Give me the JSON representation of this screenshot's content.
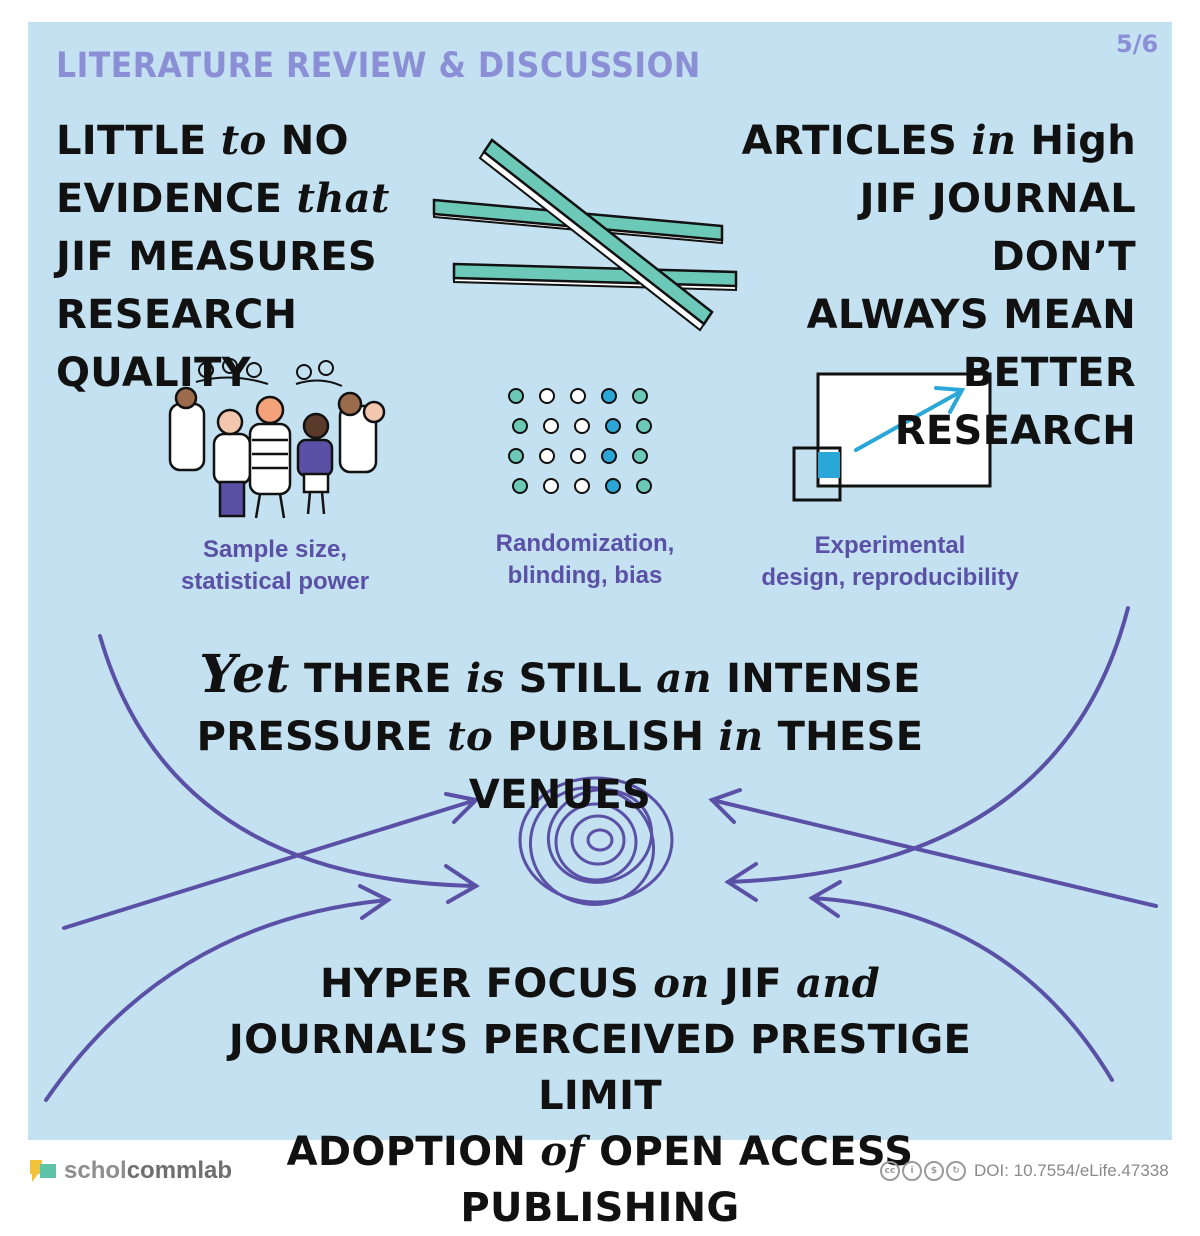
{
  "header": {
    "section_title": "LITERATURE REVIEW & DISCUSSION",
    "page_number": "5/6"
  },
  "left_claim": {
    "line1a": "LITTLE",
    "line1b": "to",
    "line1c": "NO",
    "line2a": "EVIDENCE",
    "line2b": "that",
    "line3": "JIF MEASURES",
    "line4": "RESEARCH QUALITY"
  },
  "right_claim": {
    "line1a": "ARTICLES",
    "line1b": "in",
    "line1c": "High",
    "line2": "JIF JOURNAL DON’T",
    "line3": "ALWAYS MEAN",
    "line4": "BETTER  RESEARCH"
  },
  "captions": {
    "people_line1": "Sample size,",
    "people_line2": "statistical power",
    "dots_line1": "Randomization,",
    "dots_line2": "blinding, bias",
    "chart_line1": "Experimental",
    "chart_line2": "design, reproducibility"
  },
  "middle": {
    "yet": "Yet",
    "a1": "THERE",
    "a2": "is",
    "a3": "STILL",
    "a4": "an",
    "a5": "INTENSE",
    "b1": "PRESSURE",
    "b2": "to",
    "b3": "PUBLISH",
    "b4": "in",
    "b5": "THESE VENUES"
  },
  "bottom": {
    "a1": "HYPER FOCUS",
    "a2": "on",
    "a3": "JIF",
    "a4": "and",
    "b1": "JOURNAL’S PERCEIVED PRESTIGE LIMIT",
    "c1": "ADOPTION",
    "c2": "of",
    "c3": "OPEN ACCESS PUBLISHING"
  },
  "footer": {
    "brand_part1": "schol",
    "brand_part2": "commlab",
    "doi": "DOI: 10.7554/eLife.47338",
    "license_icons": [
      "cc",
      "by",
      "nc",
      "sa"
    ]
  },
  "colors": {
    "panel_bg": "#c3e1f0",
    "accent_purple": "#5a51a6",
    "title_lavender": "#8a8fd6",
    "teal": "#6cc9b7",
    "arrow_blue": "#2aa7d6"
  }
}
